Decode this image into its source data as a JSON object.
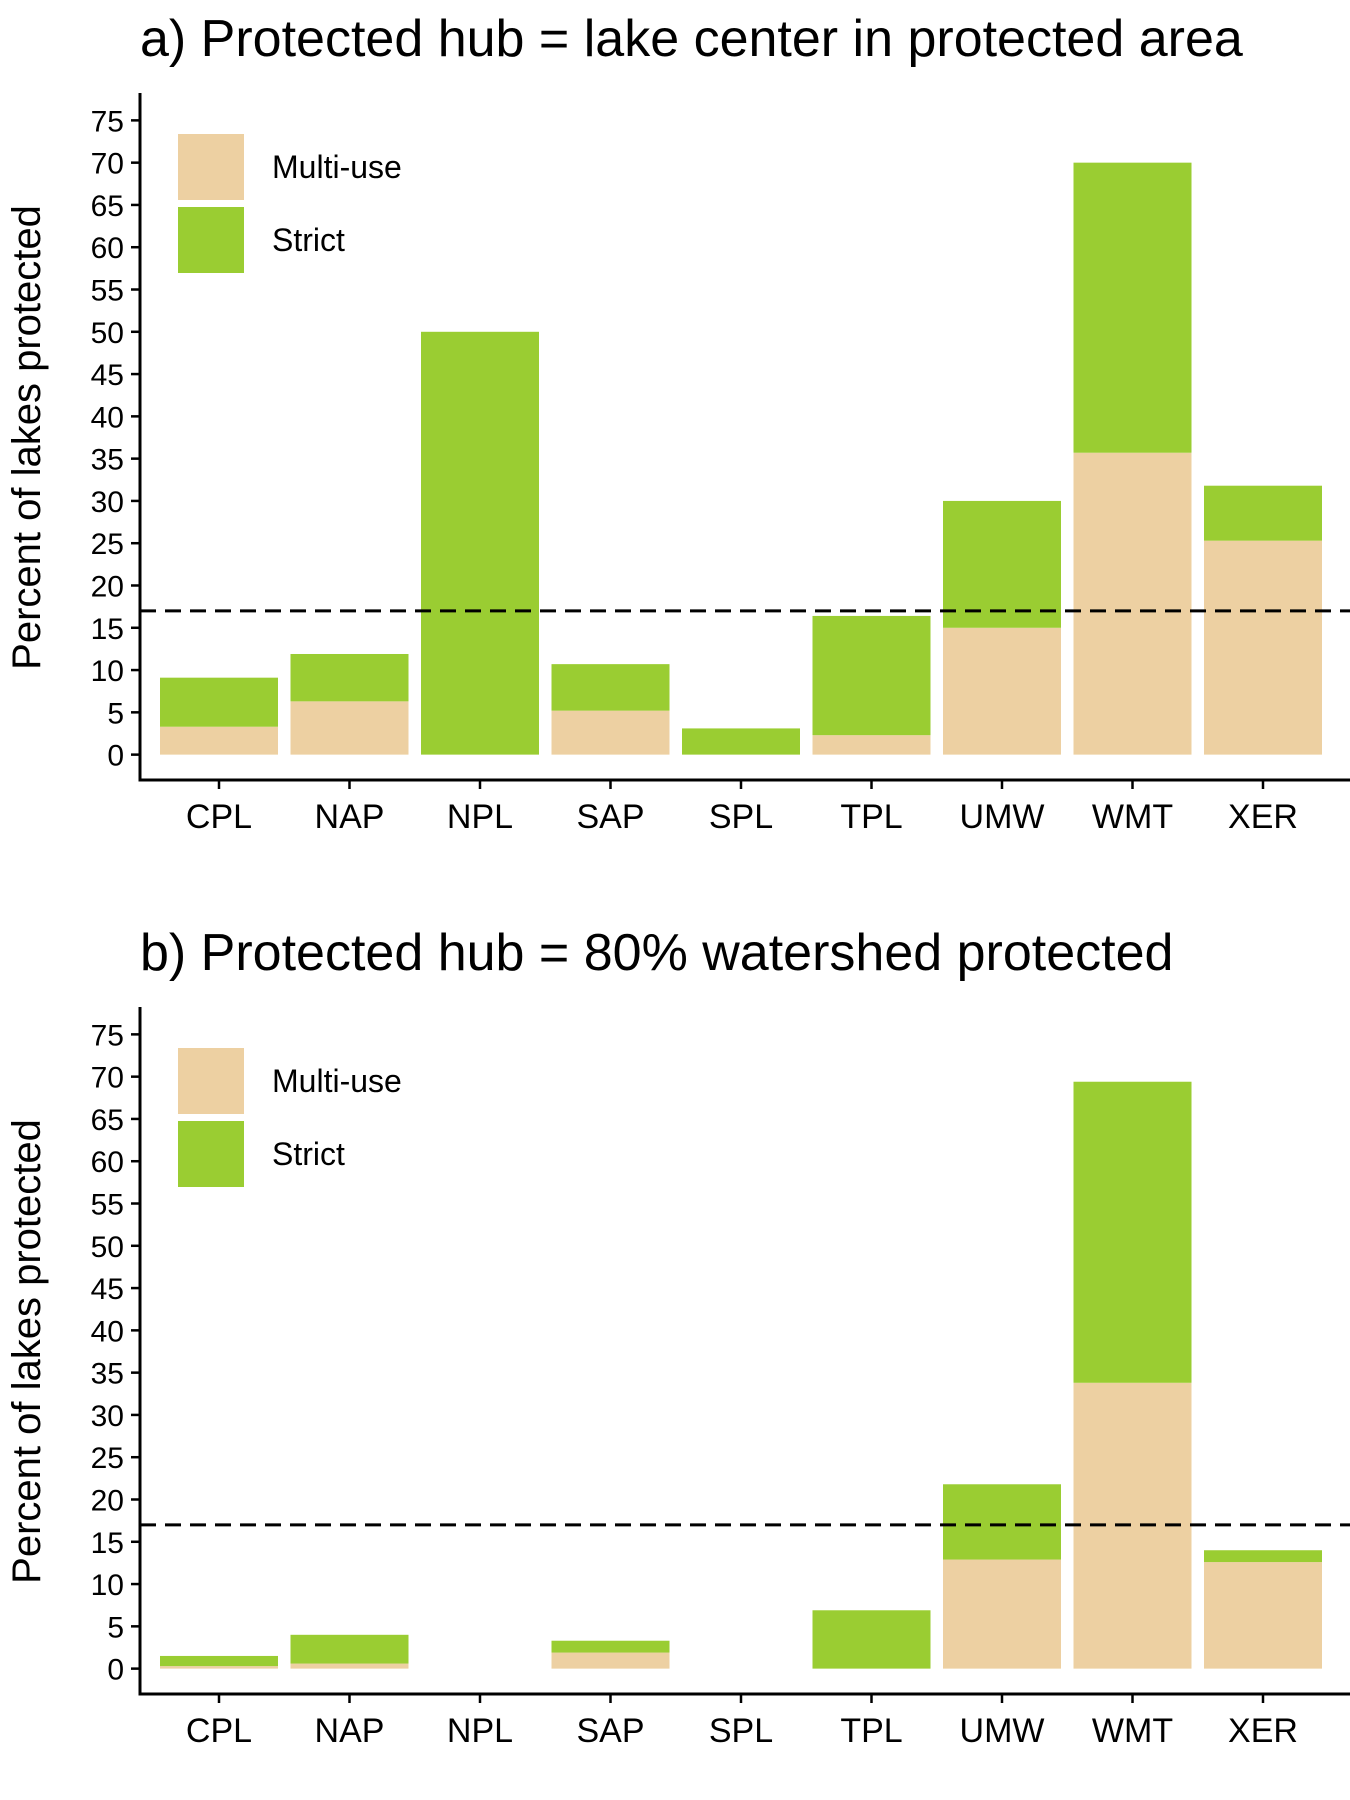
{
  "colors": {
    "multi_use": "#EDD0A2",
    "strict": "#9ACD32",
    "axis": "#000000",
    "reference_line": "#000000"
  },
  "legend": {
    "items": [
      {
        "key": "multi_use",
        "label": "Multi-use"
      },
      {
        "key": "strict",
        "label": "Strict"
      }
    ],
    "placement": "top-left"
  },
  "chart_data": [
    {
      "type": "bar",
      "stacked": true,
      "title": "a) Protected hub = lake center in protected area",
      "ylabel": "Percent of lakes protected",
      "xlabel": "",
      "categories": [
        "CPL",
        "NAP",
        "NPL",
        "SAP",
        "SPL",
        "TPL",
        "UMW",
        "WMT",
        "XER"
      ],
      "y_ticks": [
        0,
        5,
        10,
        15,
        20,
        25,
        30,
        35,
        40,
        45,
        50,
        55,
        60,
        65,
        70,
        75
      ],
      "ylim": [
        -3,
        78
      ],
      "reference_line": 17,
      "grid": false,
      "series": [
        {
          "name": "Multi-use",
          "key": "multi_use",
          "values": [
            3.3,
            6.3,
            0,
            5.2,
            0,
            2.3,
            15,
            35.7,
            25.3
          ]
        },
        {
          "name": "Strict",
          "key": "strict",
          "values": [
            5.8,
            5.6,
            50,
            5.5,
            3.1,
            14.1,
            15,
            34.3,
            6.5
          ]
        }
      ]
    },
    {
      "type": "bar",
      "stacked": true,
      "title": "b) Protected hub = 80% watershed protected",
      "ylabel": "Percent of lakes protected",
      "xlabel": "",
      "categories": [
        "CPL",
        "NAP",
        "NPL",
        "SAP",
        "SPL",
        "TPL",
        "UMW",
        "WMT",
        "XER"
      ],
      "y_ticks": [
        0,
        5,
        10,
        15,
        20,
        25,
        30,
        35,
        40,
        45,
        50,
        55,
        60,
        65,
        70,
        75
      ],
      "ylim": [
        -3,
        78
      ],
      "reference_line": 17,
      "grid": false,
      "series": [
        {
          "name": "Multi-use",
          "key": "multi_use",
          "values": [
            0.3,
            0.6,
            0,
            1.9,
            0,
            0,
            12.9,
            33.8,
            12.6
          ]
        },
        {
          "name": "Strict",
          "key": "strict",
          "values": [
            1.2,
            3.4,
            0,
            1.4,
            0,
            6.9,
            8.9,
            35.6,
            1.4
          ]
        }
      ]
    }
  ]
}
